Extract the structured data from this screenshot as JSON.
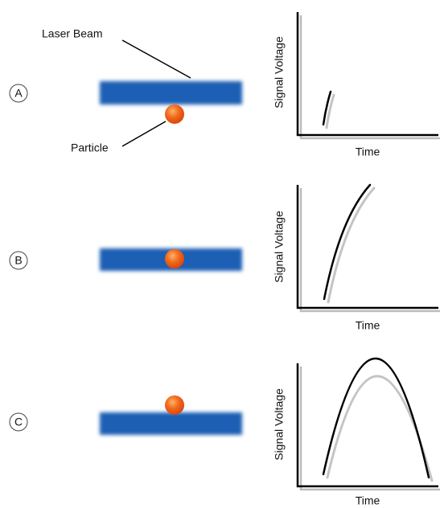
{
  "annotations": {
    "laser_beam": "Laser Beam",
    "particle": "Particle"
  },
  "panels": [
    {
      "label": "A",
      "y_label": "Signal Voltage",
      "x_label": "Time"
    },
    {
      "label": "B",
      "y_label": "Signal Voltage",
      "x_label": "Time"
    },
    {
      "label": "C",
      "y_label": "Signal Voltage",
      "x_label": "Time"
    }
  ]
}
